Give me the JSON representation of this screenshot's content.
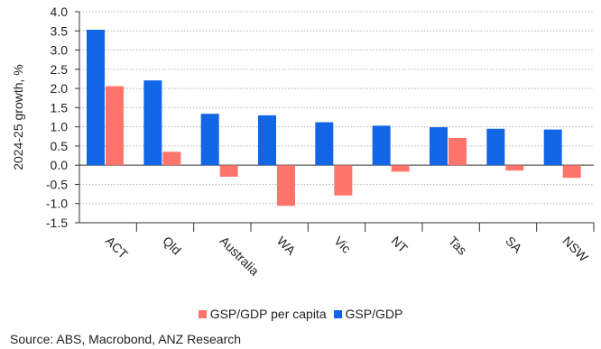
{
  "chart_data": {
    "type": "bar",
    "ylabel": "2024-25 growth, %",
    "ylim": [
      -1.5,
      4.0
    ],
    "yticks": [
      "4.0",
      "3.5",
      "3.0",
      "2.5",
      "2.0",
      "1.5",
      "1.0",
      "0.5",
      "0.0",
      "-0.5",
      "-1.0",
      "-1.5"
    ],
    "ytick_values": [
      4.0,
      3.5,
      3.0,
      2.5,
      2.0,
      1.5,
      1.0,
      0.5,
      0.0,
      -0.5,
      -1.0,
      -1.5
    ],
    "grid": "horizontal dotted",
    "categories": [
      "ACT",
      "Qld",
      "Australia",
      "WA",
      "Vic",
      "NT",
      "Tas",
      "SA",
      "NSW"
    ],
    "series": [
      {
        "name": "GSP/GDP",
        "color": "#1266e6",
        "values": [
          3.53,
          2.21,
          1.34,
          1.3,
          1.12,
          1.03,
          0.99,
          0.95,
          0.93
        ]
      },
      {
        "name": "GSP/GDP per capita",
        "color": "#ff756e",
        "values": [
          2.06,
          0.35,
          -0.3,
          -1.06,
          -0.79,
          -0.17,
          0.71,
          -0.14,
          -0.33
        ]
      }
    ],
    "legend_placement": "bottom",
    "legend_order": [
      "GSP/GDP per capita",
      "GSP/GDP"
    ]
  },
  "legend": {
    "item1": {
      "label": "GSP/GDP per capita",
      "color": "#ff756e"
    },
    "item2": {
      "label": "GSP/GDP",
      "color": "#1266e6"
    }
  },
  "source": "Source: ABS, Macrobond, ANZ Research"
}
